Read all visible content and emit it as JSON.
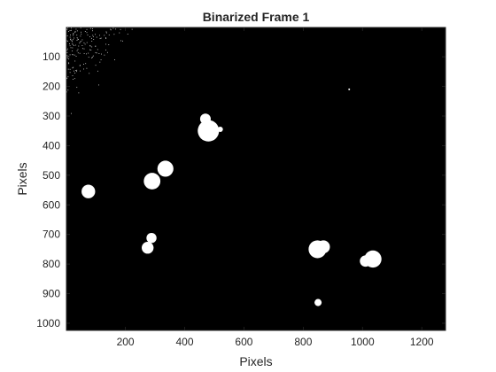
{
  "chart_data": {
    "type": "heatmap",
    "title": "Binarized Frame 1",
    "xlabel": "Pixels",
    "ylabel": "Pixels",
    "xlim": [
      1,
      1280
    ],
    "ylim": [
      1,
      1024
    ],
    "y_reversed": true,
    "grid": false,
    "colors": {
      "background": "#000000",
      "foreground": "#ffffff",
      "axes": "#262626"
    },
    "x_ticks": [
      200,
      400,
      600,
      800,
      1000,
      1200
    ],
    "y_ticks": [
      100,
      200,
      300,
      400,
      500,
      600,
      700,
      800,
      900,
      1000
    ],
    "blobs": [
      {
        "x": 480,
        "y": 350,
        "r": 36
      },
      {
        "x": 470,
        "y": 310,
        "r": 18
      },
      {
        "x": 335,
        "y": 478,
        "r": 27
      },
      {
        "x": 290,
        "y": 520,
        "r": 28
      },
      {
        "x": 75,
        "y": 555,
        "r": 23
      },
      {
        "x": 288,
        "y": 712,
        "r": 17
      },
      {
        "x": 275,
        "y": 745,
        "r": 20
      },
      {
        "x": 848,
        "y": 750,
        "r": 30
      },
      {
        "x": 868,
        "y": 742,
        "r": 22
      },
      {
        "x": 1035,
        "y": 783,
        "r": 29
      },
      {
        "x": 1010,
        "y": 790,
        "r": 19
      },
      {
        "x": 850,
        "y": 930,
        "r": 12
      }
    ],
    "noise_region": {
      "x_range": [
        1,
        260
      ],
      "y_range": [
        1,
        330
      ],
      "density": "high near top-left corner"
    },
    "speckles": [
      {
        "x": 955,
        "y": 210,
        "r": 3
      },
      {
        "x": 520,
        "y": 345,
        "r": 9
      }
    ]
  }
}
